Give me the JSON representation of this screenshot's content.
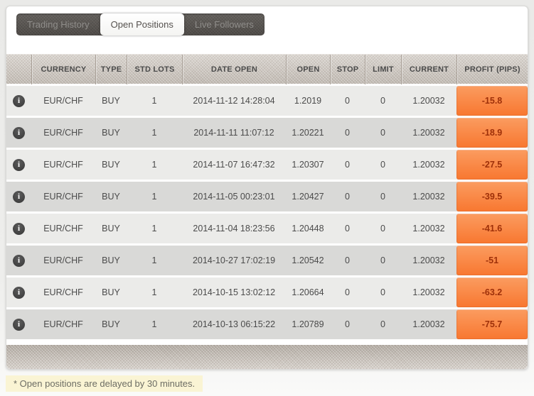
{
  "tabs": [
    {
      "label": "Trading History",
      "active": false
    },
    {
      "label": "Open Positions",
      "active": true
    },
    {
      "label": "Live Followers",
      "active": false
    }
  ],
  "icons": {
    "info_glyph": "i"
  },
  "table": {
    "columns": [
      "",
      "CURRENCY",
      "TYPE",
      "STD LOTS",
      "DATE OPEN",
      "OPEN",
      "STOP",
      "LIMIT",
      "CURRENT",
      "PROFIT (PIPS)"
    ],
    "rows": [
      {
        "currency": "EUR/CHF",
        "type": "BUY",
        "std_lots": "1",
        "date_open": "2014-11-12 14:28:04",
        "open": "1.2019",
        "stop": "0",
        "limit": "0",
        "current": "1.20032",
        "profit_pips": "-15.8"
      },
      {
        "currency": "EUR/CHF",
        "type": "BUY",
        "std_lots": "1",
        "date_open": "2014-11-11 11:07:12",
        "open": "1.20221",
        "stop": "0",
        "limit": "0",
        "current": "1.20032",
        "profit_pips": "-18.9"
      },
      {
        "currency": "EUR/CHF",
        "type": "BUY",
        "std_lots": "1",
        "date_open": "2014-11-07 16:47:32",
        "open": "1.20307",
        "stop": "0",
        "limit": "0",
        "current": "1.20032",
        "profit_pips": "-27.5"
      },
      {
        "currency": "EUR/CHF",
        "type": "BUY",
        "std_lots": "1",
        "date_open": "2014-11-05 00:23:01",
        "open": "1.20427",
        "stop": "0",
        "limit": "0",
        "current": "1.20032",
        "profit_pips": "-39.5"
      },
      {
        "currency": "EUR/CHF",
        "type": "BUY",
        "std_lots": "1",
        "date_open": "2014-11-04 18:23:56",
        "open": "1.20448",
        "stop": "0",
        "limit": "0",
        "current": "1.20032",
        "profit_pips": "-41.6"
      },
      {
        "currency": "EUR/CHF",
        "type": "BUY",
        "std_lots": "1",
        "date_open": "2014-10-27 17:02:19",
        "open": "1.20542",
        "stop": "0",
        "limit": "0",
        "current": "1.20032",
        "profit_pips": "-51"
      },
      {
        "currency": "EUR/CHF",
        "type": "BUY",
        "std_lots": "1",
        "date_open": "2014-10-15 13:02:12",
        "open": "1.20664",
        "stop": "0",
        "limit": "0",
        "current": "1.20032",
        "profit_pips": "-63.2"
      },
      {
        "currency": "EUR/CHF",
        "type": "BUY",
        "std_lots": "1",
        "date_open": "2014-10-13 06:15:22",
        "open": "1.20789",
        "stop": "0",
        "limit": "0",
        "current": "1.20032",
        "profit_pips": "-75.7"
      }
    ]
  },
  "footnote": "* Open positions are delayed by 30 minutes.",
  "colors": {
    "profit_negative_bg": "#f87730",
    "profit_negative_text": "#9e3009",
    "header_texture_base": "#ccc5bd",
    "tabbar_bg": "#57534f",
    "note_bg": "#faf4d4"
  }
}
